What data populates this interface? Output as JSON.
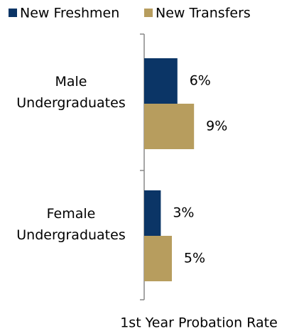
{
  "chart_data": {
    "type": "hbar",
    "categories": [
      "Male Undergraduates",
      "Female Undergraduates"
    ],
    "series": [
      {
        "name": "New Freshmen",
        "color": "#0b3566",
        "values": [
          6,
          3
        ],
        "value_labels": [
          "6%",
          "3%"
        ]
      },
      {
        "name": "New Transfers",
        "color": "#b79d5e",
        "values": [
          9,
          5
        ],
        "value_labels": [
          "9%",
          "5%"
        ]
      }
    ],
    "xlabel": "1st Year Probation Rate",
    "xlim": [
      0,
      10
    ]
  }
}
